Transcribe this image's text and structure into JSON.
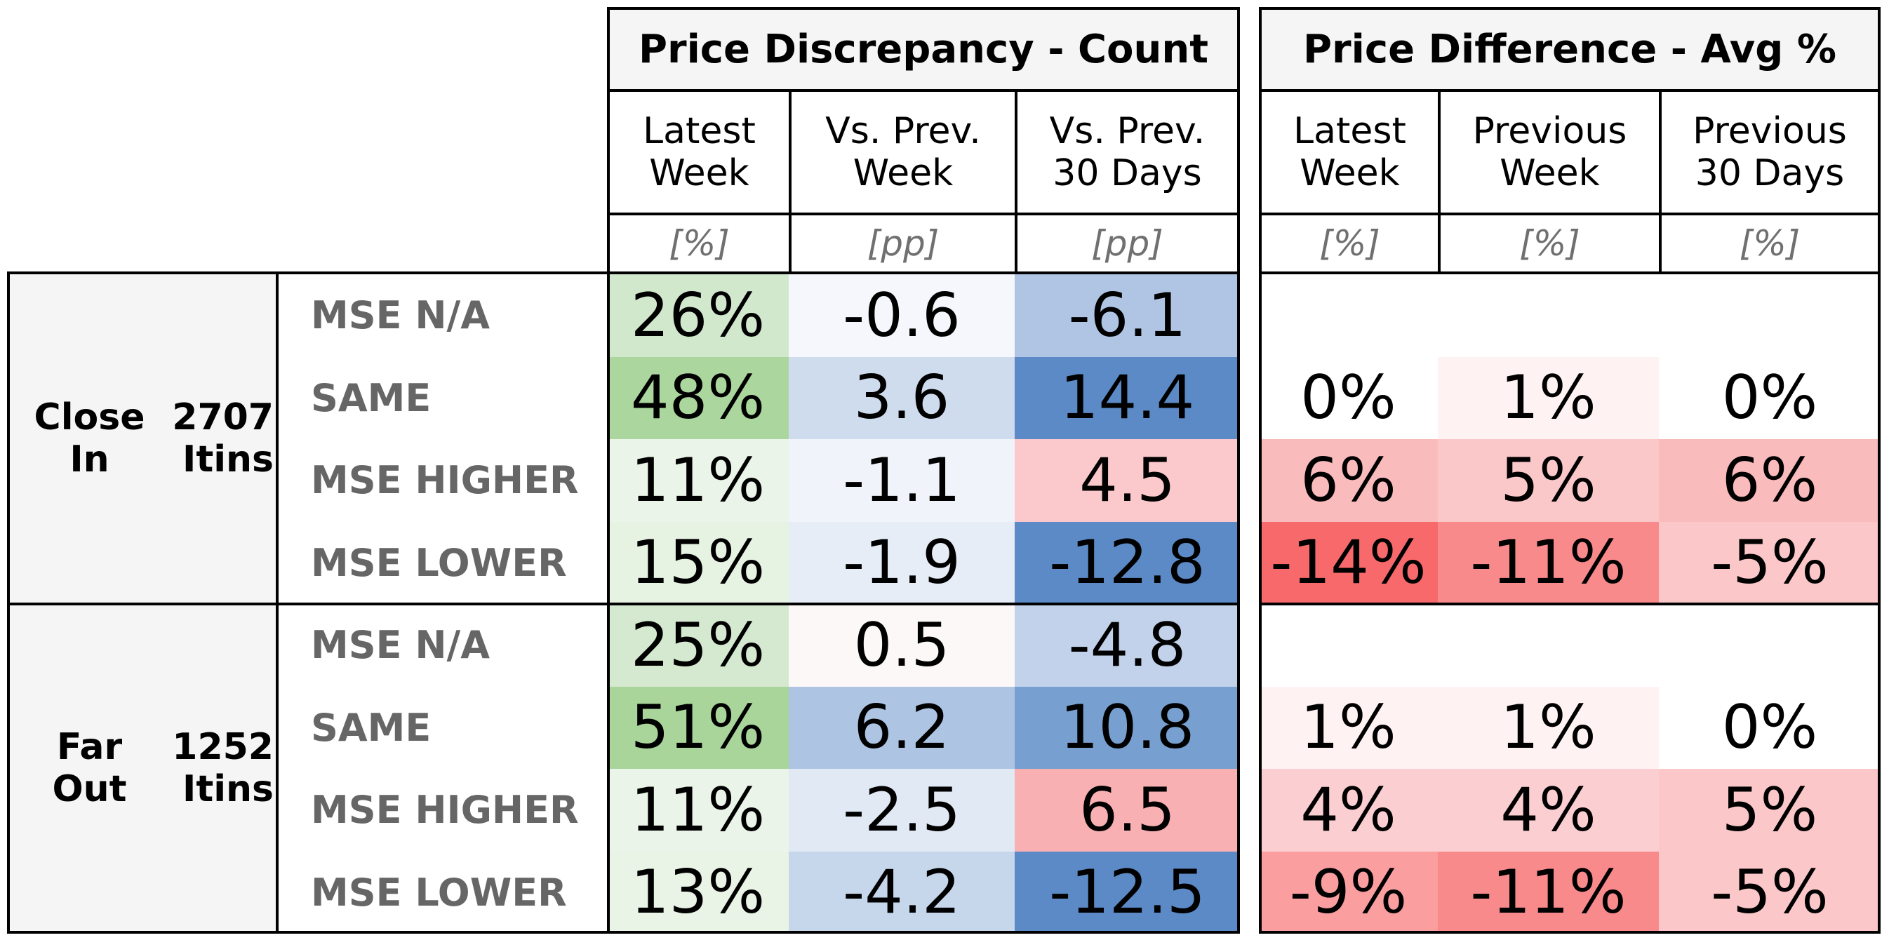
{
  "chart_data": {
    "type": "table",
    "sections": [
      {
        "title": "Price Discrepancy - Count",
        "columns": [
          {
            "label": "Latest\nWeek",
            "unit": "[%]"
          },
          {
            "label": "Vs. Prev.\nWeek",
            "unit": "[pp]"
          },
          {
            "label": "Vs. Prev.\n30 Days",
            "unit": "[pp]"
          }
        ]
      },
      {
        "title": "Price Difference - Avg %",
        "columns": [
          {
            "label": "Latest\nWeek",
            "unit": "[%]"
          },
          {
            "label": "Previous\nWeek",
            "unit": "[%]"
          },
          {
            "label": "Previous\n30 Days",
            "unit": "[%]"
          }
        ]
      }
    ],
    "groups": [
      {
        "name": "Close\nIn",
        "count": "2707\nItins",
        "rows": [
          {
            "label": "MSE N/A",
            "count": [
              {
                "text": "26%",
                "bg": "#d2e8cd"
              },
              {
                "text": "-0.6",
                "bg": "#f5f7fc"
              },
              {
                "text": "-6.1",
                "bg": "#afc5e3"
              }
            ],
            "diff": [
              {
                "text": "",
                "bg": "#ffffff"
              },
              {
                "text": "",
                "bg": "#ffffff"
              },
              {
                "text": "",
                "bg": "#ffffff"
              }
            ]
          },
          {
            "label": "SAME",
            "count": [
              {
                "text": "48%",
                "bg": "#abd69d"
              },
              {
                "text": "3.6",
                "bg": "#cfdcee"
              },
              {
                "text": "14.4",
                "bg": "#5b8ac6"
              }
            ],
            "diff": [
              {
                "text": "0%",
                "bg": "#ffffff"
              },
              {
                "text": "1%",
                "bg": "#fff2f2"
              },
              {
                "text": "0%",
                "bg": "#ffffff"
              }
            ]
          },
          {
            "label": "MSE HIGHER",
            "count": [
              {
                "text": "11%",
                "bg": "#ebf4e8"
              },
              {
                "text": "-1.1",
                "bg": "#f0f3f9"
              },
              {
                "text": "4.5",
                "bg": "#fbc9cb"
              }
            ],
            "diff": [
              {
                "text": "6%",
                "bg": "#fabbbd"
              },
              {
                "text": "5%",
                "bg": "#fbc8ca"
              },
              {
                "text": "6%",
                "bg": "#fabbbd"
              }
            ]
          },
          {
            "label": "MSE LOWER",
            "count": [
              {
                "text": "15%",
                "bg": "#e6f2e2"
              },
              {
                "text": "-1.9",
                "bg": "#e7edf7"
              },
              {
                "text": "-12.8",
                "bg": "#5b8ac6"
              }
            ],
            "diff": [
              {
                "text": "-14%",
                "bg": "#f8696b"
              },
              {
                "text": "-11%",
                "bg": "#f98a8c"
              },
              {
                "text": "-5%",
                "bg": "#fbc7c9"
              }
            ]
          }
        ]
      },
      {
        "name": "Far\nOut",
        "count": "1252\nItins",
        "rows": [
          {
            "label": "MSE N/A",
            "count": [
              {
                "text": "25%",
                "bg": "#d4e9cf"
              },
              {
                "text": "0.5",
                "bg": "#fdf8f8"
              },
              {
                "text": "-4.8",
                "bg": "#c1d2ea"
              }
            ],
            "diff": [
              {
                "text": "",
                "bg": "#ffffff"
              },
              {
                "text": "",
                "bg": "#ffffff"
              },
              {
                "text": "",
                "bg": "#ffffff"
              }
            ]
          },
          {
            "label": "SAME",
            "count": [
              {
                "text": "51%",
                "bg": "#a9d59b"
              },
              {
                "text": "6.2",
                "bg": "#adc4e3"
              },
              {
                "text": "10.8",
                "bg": "#77a0d1"
              }
            ],
            "diff": [
              {
                "text": "1%",
                "bg": "#fff2f2"
              },
              {
                "text": "1%",
                "bg": "#fff2f2"
              },
              {
                "text": "0%",
                "bg": "#ffffff"
              }
            ]
          },
          {
            "label": "MSE HIGHER",
            "count": [
              {
                "text": "11%",
                "bg": "#ebf4e8"
              },
              {
                "text": "-2.5",
                "bg": "#e1e9f5"
              },
              {
                "text": "6.5",
                "bg": "#f9b0b2"
              }
            ],
            "diff": [
              {
                "text": "4%",
                "bg": "#fbcfd1"
              },
              {
                "text": "4%",
                "bg": "#fbcfd1"
              },
              {
                "text": "5%",
                "bg": "#fbc7c9"
              }
            ]
          },
          {
            "label": "MSE LOWER",
            "count": [
              {
                "text": "13%",
                "bg": "#e9f3e6"
              },
              {
                "text": "-4.2",
                "bg": "#c6d7ec"
              },
              {
                "text": "-12.5",
                "bg": "#5b8ac6"
              }
            ],
            "diff": [
              {
                "text": "-9%",
                "bg": "#fa9ea0"
              },
              {
                "text": "-11%",
                "bg": "#f98a8c"
              },
              {
                "text": "-5%",
                "bg": "#fbc7c9"
              }
            ]
          }
        ]
      }
    ]
  }
}
